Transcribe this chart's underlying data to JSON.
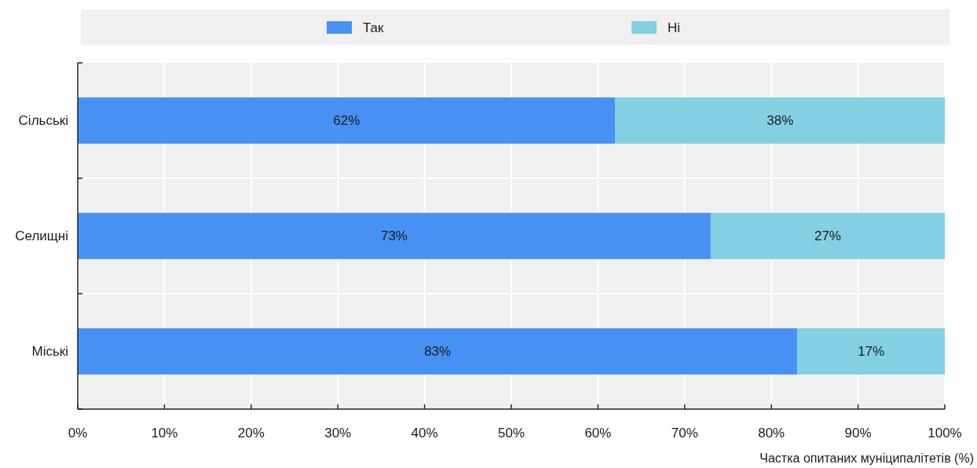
{
  "chart_data": {
    "type": "bar",
    "orientation": "horizontal",
    "stacked": true,
    "categories": [
      "Сільські",
      "Селищні",
      "Міські"
    ],
    "series": [
      {
        "name": "Так",
        "color": "#4891f4",
        "values": [
          62,
          73,
          83
        ],
        "value_labels": [
          "62%",
          "73%",
          "83%"
        ]
      },
      {
        "name": "Ні",
        "color": "#83d0e3",
        "values": [
          38,
          27,
          17
        ],
        "value_labels": [
          "38%",
          "27%",
          "17%"
        ]
      }
    ],
    "xlim": [
      0,
      100
    ],
    "xticks": [
      {
        "value": 0,
        "label": "0%"
      },
      {
        "value": 10,
        "label": "10%"
      },
      {
        "value": 20,
        "label": "20%"
      },
      {
        "value": 30,
        "label": "30%"
      },
      {
        "value": 40,
        "label": "40%"
      },
      {
        "value": 50,
        "label": "50%"
      },
      {
        "value": 60,
        "label": "60%"
      },
      {
        "value": 70,
        "label": "70%"
      },
      {
        "value": 80,
        "label": "80%"
      },
      {
        "value": 90,
        "label": "90%"
      },
      {
        "value": 100,
        "label": "100%"
      }
    ],
    "xlabel": "Частка опитаних муніципалітетів (%)",
    "grid": true,
    "legend": "top"
  }
}
